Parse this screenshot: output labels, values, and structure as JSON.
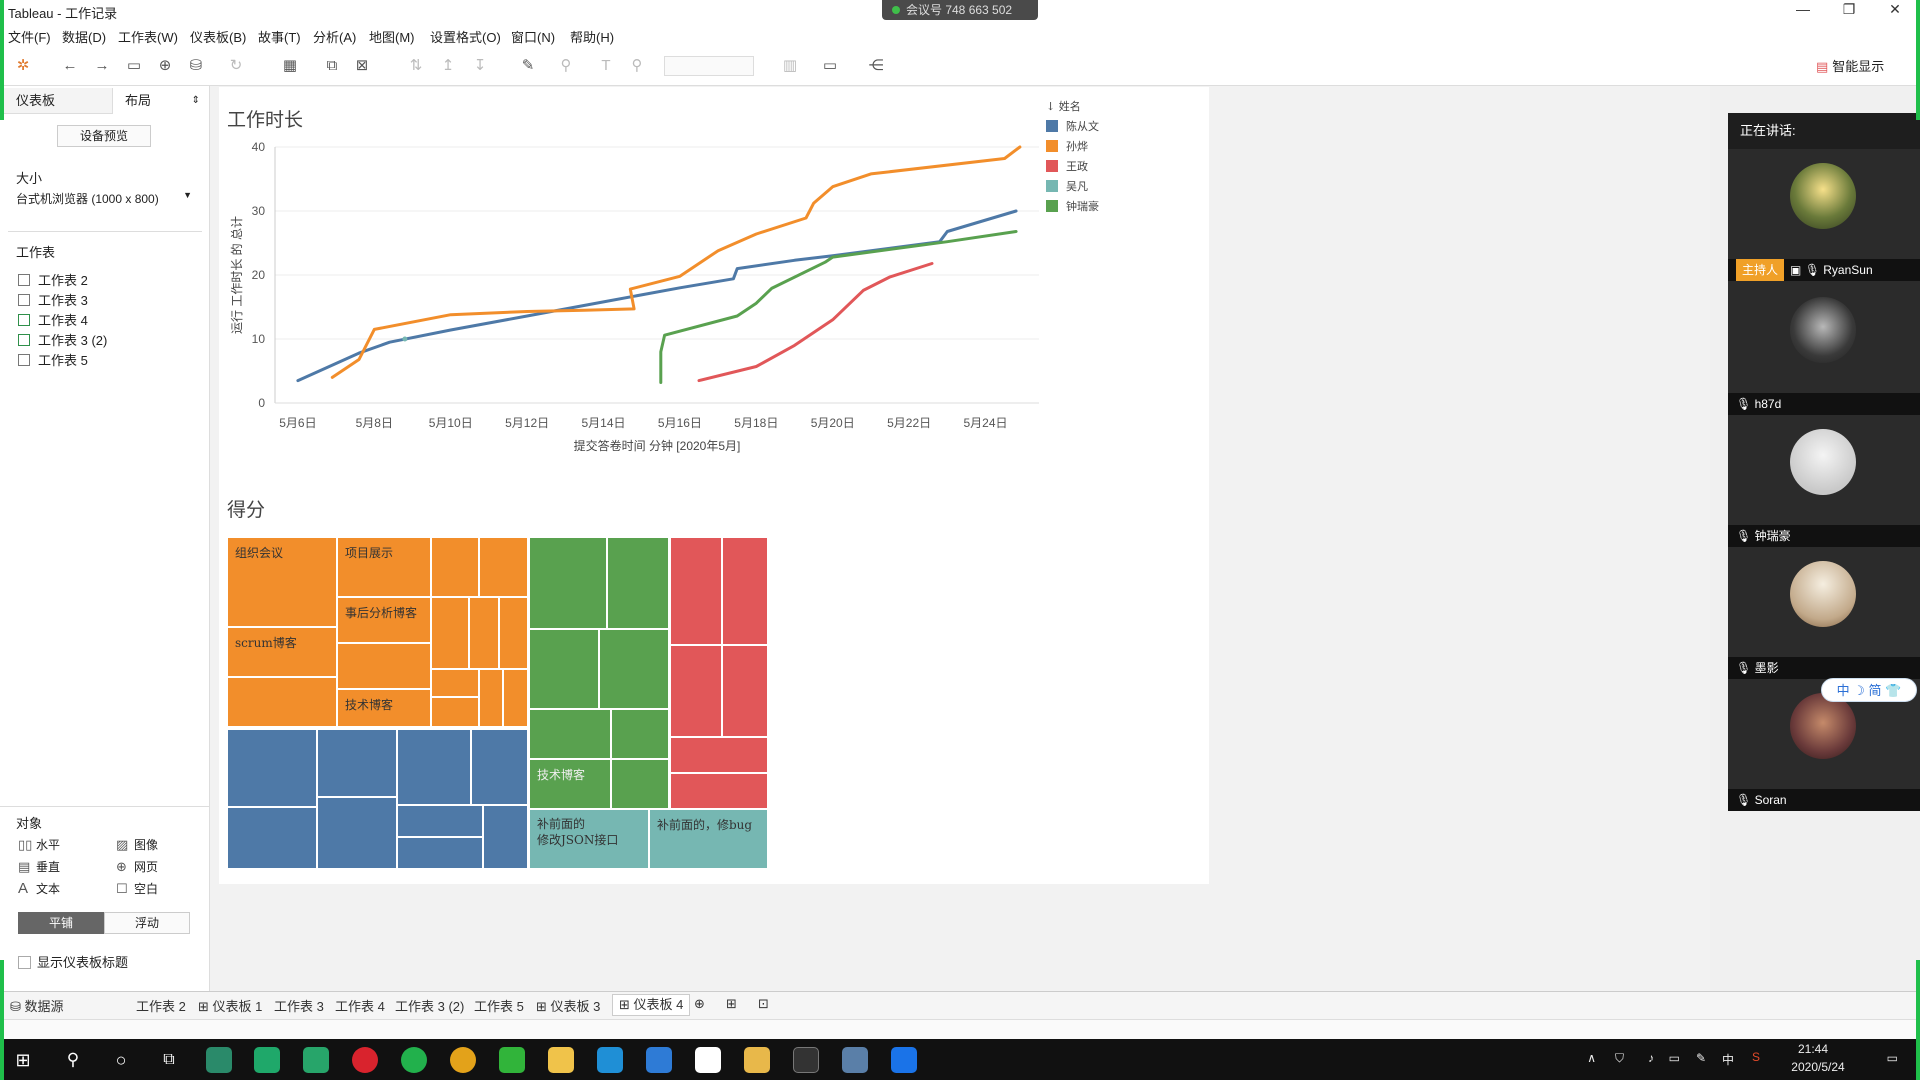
{
  "window": {
    "title": "Tableau - 工作记录",
    "meeting_id": "会议号 748 663 502"
  },
  "menu": [
    "文件(F)",
    "数据(D)",
    "工作表(W)",
    "仪表板(B)",
    "故事(T)",
    "分析(A)",
    "地图(M)",
    "设置格式(O)",
    "窗口(N)",
    "帮助(H)"
  ],
  "toolbar": {
    "smart_display": "智能显示"
  },
  "sidebar": {
    "tab_dashboard": "仪表板",
    "tab_layout": "布局",
    "device_preview": "设备预览",
    "size_label": "大小",
    "size_value": "台式机浏览器 (1000 x 800)",
    "worksheets_label": "工作表",
    "worksheets": [
      "工作表 2",
      "工作表 3",
      "工作表 4",
      "工作表 3 (2)",
      "工作表 5"
    ],
    "objects_label": "对象",
    "objects": [
      "水平",
      "图像",
      "垂直",
      "网页",
      "文本",
      "空白"
    ],
    "tiled": "平铺",
    "floating": "浮动",
    "show_title": "显示仪表板标题"
  },
  "chart_title": "工作时长",
  "chart_data": {
    "type": "line",
    "title": "工作时长",
    "xlabel": "提交答卷时间 分钟 [2020年5月]",
    "ylabel": "运行 工作时长 的 总计",
    "ylim": [
      0,
      40
    ],
    "yticks": [
      "0",
      "10",
      "20",
      "30",
      "40"
    ],
    "xticks": [
      "5月6日",
      "5月8日",
      "5月10日",
      "5月12日",
      "5月14日",
      "5月16日",
      "5月18日",
      "5月20日",
      "5月22日",
      "5月24日"
    ],
    "legend_title": "姓名",
    "series": [
      {
        "name": "陈从文",
        "color": "#4e79a7",
        "points": [
          [
            6.0,
            3.5
          ],
          [
            7.6,
            7.8
          ],
          [
            8.4,
            9.5
          ],
          [
            10.0,
            11.4
          ],
          [
            12.0,
            13.6
          ],
          [
            14.0,
            15.8
          ],
          [
            16.0,
            18.0
          ],
          [
            17.4,
            19.4
          ],
          [
            17.5,
            21.0
          ],
          [
            19.0,
            22.3
          ],
          [
            20.0,
            23.0
          ],
          [
            22.8,
            25.2
          ],
          [
            23.0,
            26.8
          ],
          [
            24.8,
            30.0
          ]
        ]
      },
      {
        "name": "孙烨",
        "color": "#f28e2b",
        "points": [
          [
            6.9,
            4.0
          ],
          [
            7.6,
            6.8
          ],
          [
            8.0,
            11.5
          ],
          [
            10.0,
            13.8
          ],
          [
            12.0,
            14.3
          ],
          [
            13.5,
            14.5
          ],
          [
            14.8,
            14.7
          ],
          [
            14.7,
            17.8
          ],
          [
            16.0,
            19.8
          ],
          [
            17.0,
            23.8
          ],
          [
            18.0,
            26.4
          ],
          [
            19.3,
            28.9
          ],
          [
            19.5,
            31.2
          ],
          [
            20.0,
            33.8
          ],
          [
            21.0,
            35.8
          ],
          [
            24.5,
            38.2
          ],
          [
            24.9,
            40.0
          ]
        ]
      },
      {
        "name": "王政",
        "color": "#e15759",
        "points": [
          [
            16.5,
            3.5
          ],
          [
            18.0,
            5.7
          ],
          [
            19.0,
            9.0
          ],
          [
            20.0,
            13.0
          ],
          [
            20.8,
            17.6
          ],
          [
            21.5,
            19.7
          ],
          [
            22.6,
            21.8
          ]
        ]
      },
      {
        "name": "吴凡",
        "color": "#76b7b2",
        "points": []
      },
      {
        "name": "钟瑞豪",
        "color": "#59a14f",
        "points": [
          [
            15.5,
            3.2
          ],
          [
            15.5,
            8.0
          ],
          [
            15.6,
            10.6
          ],
          [
            17.5,
            13.6
          ],
          [
            18.0,
            15.6
          ],
          [
            18.4,
            17.9
          ],
          [
            19.8,
            22.0
          ],
          [
            20.0,
            22.8
          ],
          [
            23.0,
            25.2
          ],
          [
            24.8,
            26.8
          ]
        ]
      }
    ]
  },
  "treemap_title": "得分",
  "treemap": {
    "labels": {
      "org_meeting": "组织会议",
      "project_show": "项目展示",
      "post_analysis": "事后分析博客",
      "scrum_blog": "scrum博客",
      "tech_blog": "技术博客",
      "tech_blog_green": "技术博客",
      "fix_front_json": "补前面的\n修改JSON接口",
      "fix_front_bug": "补前面的，修bug"
    },
    "colors": {
      "orange": "#f28e2b",
      "blue": "#4e79a7",
      "green": "#59a14f",
      "red": "#e15759",
      "teal": "#76b7b2"
    }
  },
  "participants": {
    "header": "正在讲话:",
    "host_badge": "主持人",
    "people": [
      "RyanSun",
      "h87d",
      "钟瑞豪",
      "墨影",
      "Soran"
    ]
  },
  "ime": "中 ☽ 简 👕",
  "sheet_tabs": [
    "数据源",
    "工作表 2",
    "仪表板 1",
    "工作表 3",
    "工作表 4",
    "工作表 3 (2)",
    "工作表 5",
    "仪表板 3",
    "仪表板 4"
  ],
  "clock": {
    "time": "21:44",
    "date": "2020/5/24"
  },
  "tray_ime": "中"
}
